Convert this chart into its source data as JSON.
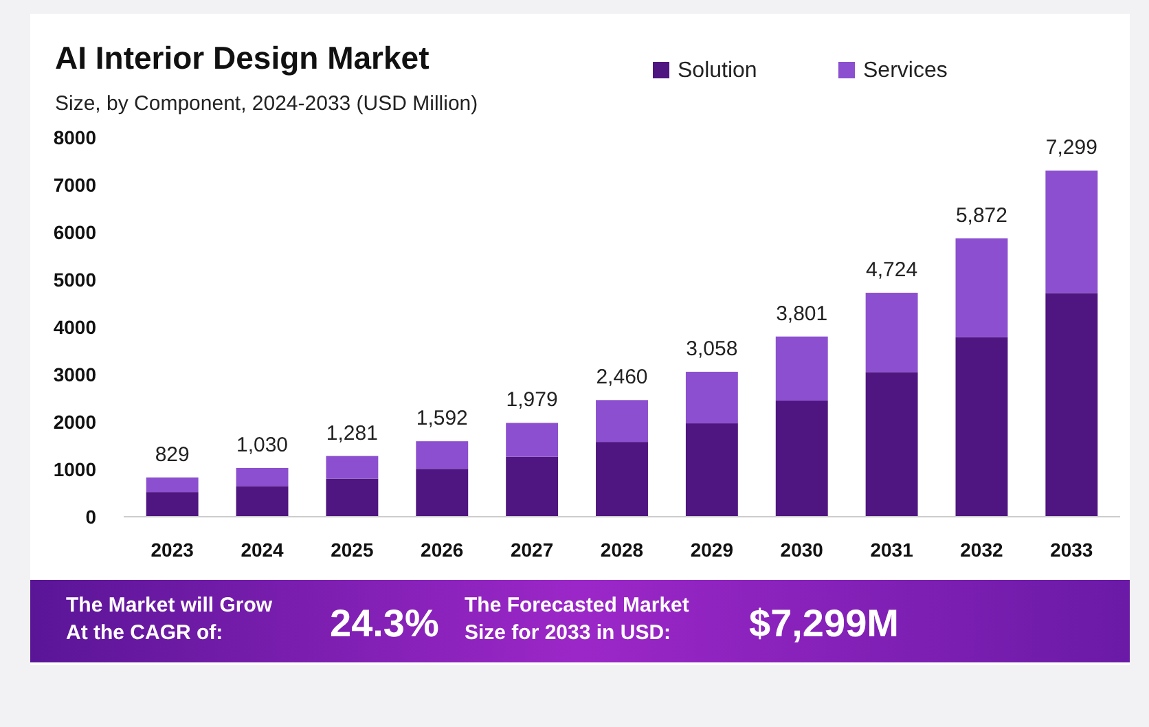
{
  "chart_data": {
    "type": "bar",
    "title": "AI Interior Design Market",
    "subtitle": "Size, by Component, 2024-2033 (USD Million)",
    "categories": [
      "2023",
      "2024",
      "2025",
      "2026",
      "2027",
      "2028",
      "2029",
      "2030",
      "2031",
      "2032",
      "2033"
    ],
    "stacked": true,
    "series": [
      {
        "name": "Solution",
        "color": "#4f1580",
        "values": [
          520,
          647,
          804,
          1010,
          1265,
          1578,
          1970,
          2450,
          3050,
          3785,
          4716
        ]
      },
      {
        "name": "Services",
        "color": "#8b4fcf",
        "values": [
          309,
          383,
          477,
          582,
          714,
          882,
          1088,
          1351,
          1674,
          2087,
          2583
        ]
      }
    ],
    "totals": [
      "829",
      "1,030",
      "1,281",
      "1,592",
      "1,979",
      "2,460",
      "3,058",
      "3,801",
      "4,724",
      "5,872",
      "7,299"
    ],
    "ylim": [
      0,
      8000
    ],
    "yticks": [
      0,
      1000,
      2000,
      3000,
      4000,
      5000,
      6000,
      7000,
      8000
    ],
    "grid": false,
    "legend": "top right",
    "annotations": [
      "The Market will Grow At the CAGR of:",
      "24.3%",
      "The Forecasted Market Size for 2033 in USD:",
      "$7,299M"
    ]
  }
}
